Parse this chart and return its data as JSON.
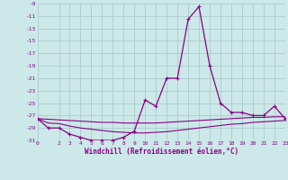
{
  "xlabel": "Windchill (Refroidissement éolien,°C)",
  "background_color": "#cce8e8",
  "grid_color": "#aacccc",
  "line_color": "#880088",
  "xlim": [
    0,
    23
  ],
  "ylim": [
    -31,
    -9
  ],
  "yticks": [
    -9,
    -11,
    -13,
    -15,
    -17,
    -19,
    -21,
    -23,
    -25,
    -27,
    -29,
    -31
  ],
  "xticks": [
    0,
    2,
    3,
    4,
    5,
    6,
    7,
    8,
    9,
    10,
    11,
    12,
    13,
    14,
    15,
    16,
    17,
    18,
    19,
    20,
    21,
    22,
    23
  ],
  "s1_x": [
    0,
    1,
    2,
    3,
    4,
    5,
    6,
    7,
    8,
    9,
    10,
    11,
    12,
    13,
    14,
    15,
    16,
    17,
    18,
    19,
    20,
    21,
    22,
    23
  ],
  "s1_y": [
    -27.5,
    -29.0,
    -29.0,
    -30.0,
    -30.5,
    -31.0,
    -31.0,
    -31.0,
    -30.5,
    -29.5,
    -24.5,
    -25.5,
    -21.0,
    -21.0,
    -11.5,
    -9.5,
    -19.0,
    -25.0,
    -26.5,
    -26.5,
    -27.0,
    -27.0,
    -25.5,
    -27.5
  ],
  "s2_x": [
    0,
    1,
    2,
    3,
    4,
    5,
    6,
    7,
    8,
    9,
    10,
    11,
    12,
    13,
    14,
    15,
    16,
    17,
    18,
    19,
    20,
    21,
    22,
    23
  ],
  "s2_y": [
    -27.5,
    -27.6,
    -27.7,
    -27.8,
    -27.9,
    -28.0,
    -28.1,
    -28.1,
    -28.2,
    -28.2,
    -28.2,
    -28.2,
    -28.1,
    -28.0,
    -27.9,
    -27.8,
    -27.7,
    -27.6,
    -27.5,
    -27.4,
    -27.3,
    -27.3,
    -27.2,
    -27.2
  ],
  "s3_x": [
    0,
    1,
    2,
    3,
    4,
    5,
    6,
    7,
    8,
    9,
    10,
    11,
    12,
    13,
    14,
    15,
    16,
    17,
    18,
    19,
    20,
    21,
    22,
    23
  ],
  "s3_y": [
    -27.5,
    -28.2,
    -28.3,
    -28.7,
    -29.0,
    -29.2,
    -29.4,
    -29.6,
    -29.7,
    -29.8,
    -29.8,
    -29.7,
    -29.6,
    -29.4,
    -29.2,
    -29.0,
    -28.8,
    -28.6,
    -28.4,
    -28.3,
    -28.1,
    -28.0,
    -27.9,
    -27.8
  ]
}
